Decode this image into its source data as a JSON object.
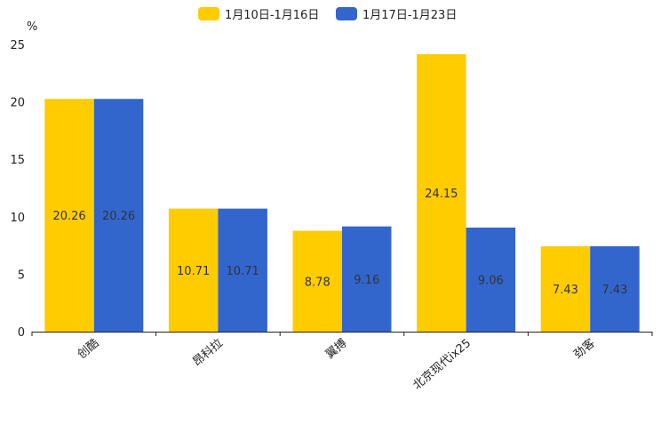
{
  "chart_data": {
    "type": "bar",
    "title": "",
    "xlabel": "",
    "ylabel": "%",
    "ylim": [
      0,
      25
    ],
    "yticks": [
      0,
      5,
      10,
      15,
      20,
      25
    ],
    "legend_position": "top-center",
    "grid": false,
    "categories": [
      "创酷",
      "昂科拉",
      "翼搏",
      "北京现代ix25",
      "劲客"
    ],
    "series": [
      {
        "name": "1月10日-1月16日",
        "color": "#ffcc00",
        "values": [
          20.26,
          10.71,
          8.78,
          24.15,
          7.43
        ]
      },
      {
        "name": "1月17日-1月23日",
        "color": "#3366cc",
        "values": [
          20.26,
          10.71,
          9.16,
          9.06,
          7.43
        ]
      }
    ]
  }
}
